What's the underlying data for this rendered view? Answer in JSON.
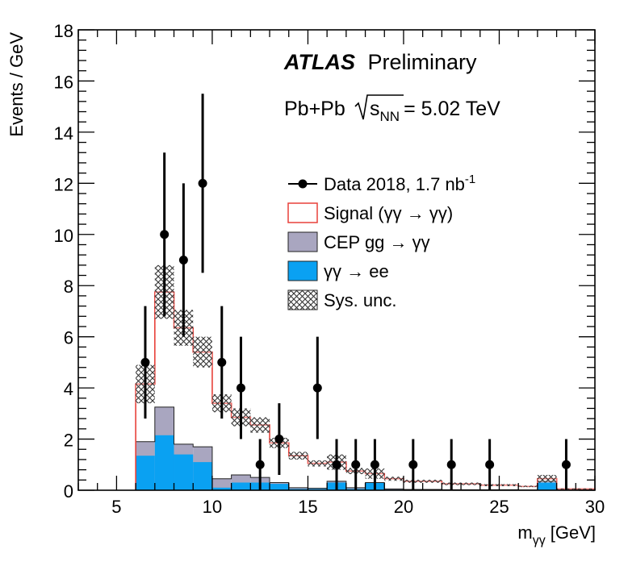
{
  "chart_data": {
    "type": "histogram",
    "header": {
      "brand": "ATLAS",
      "qualifier": "Preliminary",
      "system": "Pb+Pb",
      "energy_lhs": "s",
      "energy_sub": "NN",
      "energy_rhs": "= 5.02 TeV"
    },
    "xlabel_main": "m",
    "xlabel_sub": "γγ",
    "xlabel_unit": "[GeV]",
    "ylabel": "Events / GeV",
    "xlim": [
      3,
      30
    ],
    "ylim": [
      0,
      18
    ],
    "x_ticks": [
      5,
      10,
      15,
      20,
      25,
      30
    ],
    "y_ticks": [
      0,
      2,
      4,
      6,
      8,
      10,
      12,
      14,
      16,
      18
    ],
    "bin_edges": [
      6,
      7,
      8,
      9,
      10,
      11,
      12,
      13,
      14,
      15,
      16,
      17,
      18,
      19,
      20,
      22,
      24,
      26,
      27,
      28,
      30
    ],
    "signal_total": [
      4.15,
      7.75,
      6.35,
      5.4,
      3.4,
      2.85,
      2.55,
      1.85,
      1.35,
      1.05,
      1.1,
      0.75,
      0.65,
      0.45,
      0.35,
      0.25,
      0.2,
      0.15,
      0.45,
      0.05
    ],
    "sys_unc": [
      0.75,
      1.05,
      0.7,
      0.6,
      0.35,
      0.35,
      0.3,
      0.2,
      0.15,
      0.12,
      0.3,
      0.12,
      0.2,
      0.08,
      0.06,
      0.05,
      0.04,
      0.03,
      0.15,
      0.02
    ],
    "cep_gg": [
      1.9,
      3.25,
      1.8,
      1.7,
      0.45,
      0.6,
      0.5,
      0.3,
      0.1,
      0.08,
      0.35,
      0.1,
      0.3,
      0.05,
      0.03,
      0.02,
      0.02,
      0.01,
      0.35,
      0.01
    ],
    "gg_ee": [
      1.35,
      2.15,
      1.4,
      1.1,
      0.1,
      0.3,
      0.3,
      0.25,
      0.05,
      0.05,
      0.3,
      0.05,
      0.3,
      0.02,
      0.02,
      0.01,
      0.01,
      0.01,
      0.3,
      0.01
    ],
    "data": {
      "x": [
        6.5,
        7.5,
        8.5,
        9.5,
        10.5,
        11.5,
        12.5,
        13.5,
        15.5,
        16.5,
        17.5,
        18.5,
        20.5,
        22.5,
        24.5,
        28.5
      ],
      "y": [
        5,
        10,
        9,
        12,
        5,
        4,
        1,
        2,
        4,
        1,
        1,
        1,
        1,
        1,
        1,
        1
      ],
      "err_up": [
        2.2,
        3.2,
        3.0,
        3.5,
        2.2,
        2.0,
        1.0,
        1.4,
        2.0,
        1.0,
        1.0,
        1.0,
        1.0,
        1.0,
        1.0,
        1.0
      ],
      "err_down": [
        2.2,
        3.2,
        3.0,
        3.5,
        2.2,
        2.0,
        1.0,
        1.4,
        2.0,
        1.0,
        1.0,
        1.0,
        1.0,
        1.0,
        1.0,
        1.0
      ]
    },
    "legend": [
      {
        "key": "data",
        "label": "Data 2018, 1.7 nb",
        "sup": "-1"
      },
      {
        "key": "signal",
        "label": "Signal (γγ → γγ)"
      },
      {
        "key": "cep",
        "label": "CEP gg → γγ"
      },
      {
        "key": "ee",
        "label": "γγ → ee"
      },
      {
        "key": "sys",
        "label": "Sys. unc."
      }
    ],
    "colors": {
      "signal": "#e8413a",
      "cep": "#a9a6c0",
      "ee": "#0aa1f2",
      "data": "#000000",
      "hatch": "#333333"
    }
  }
}
